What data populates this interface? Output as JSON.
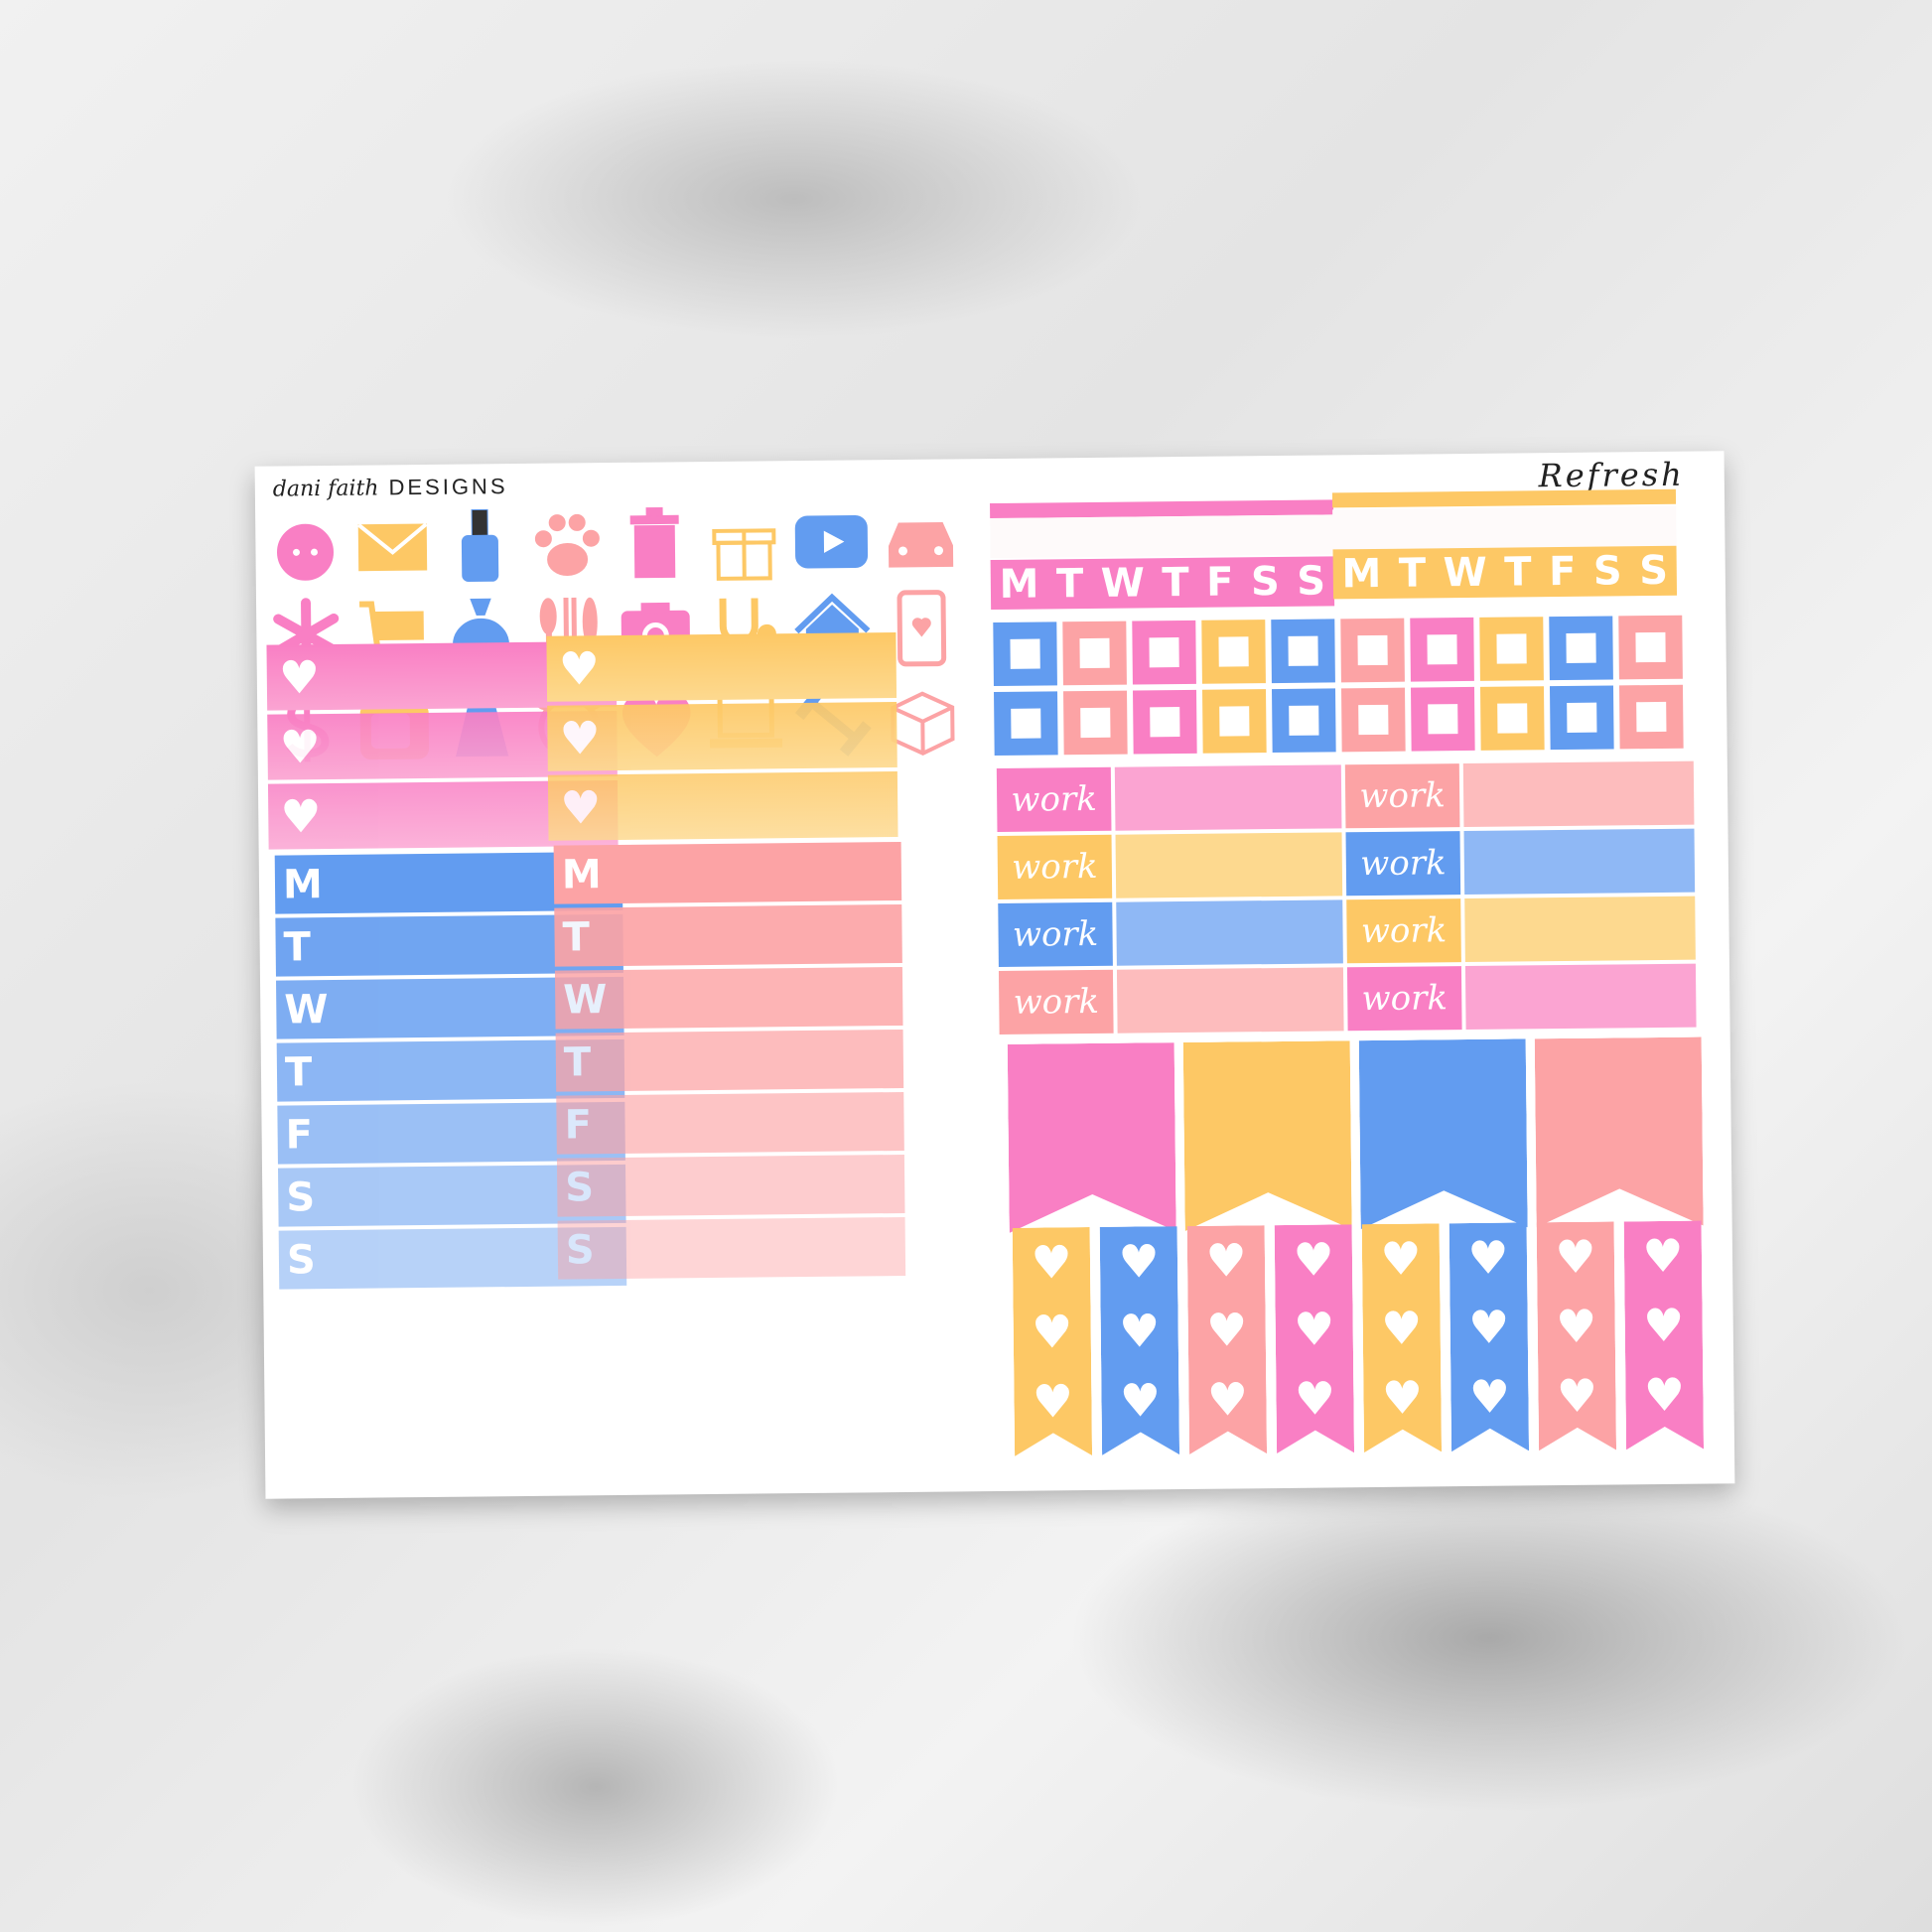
{
  "brand": {
    "script": "dani faith",
    "word": "DESIGNS"
  },
  "title": "Refresh",
  "colors": {
    "pink": "#f97fc4",
    "yellow": "#fdc865",
    "blue": "#629cf0",
    "salmon": "#fca3a5",
    "light_pink": "#fba4d2",
    "light_yellow": "#fdd98f",
    "light_blue": "#8fb8f5",
    "light_salmon": "#fdbcbd"
  },
  "icons": [
    [
      "face-mask-icon",
      "pink"
    ],
    [
      "envelope-icon",
      "yellow"
    ],
    [
      "nail-polish-icon",
      "blue"
    ],
    [
      "paw-icon",
      "salmon"
    ],
    [
      "trash-icon",
      "pink"
    ],
    [
      "gift-icon",
      "yellow"
    ],
    [
      "play-video-icon",
      "blue"
    ],
    [
      "car-icon",
      "salmon"
    ],
    [
      "asterisk-icon",
      "pink"
    ],
    [
      "shopping-cart-icon",
      "yellow"
    ],
    [
      "money-bag-icon",
      "blue"
    ],
    [
      "utensils-icon",
      "salmon"
    ],
    [
      "camera-icon",
      "pink"
    ],
    [
      "stethoscope-icon",
      "yellow"
    ],
    [
      "house-icon",
      "blue"
    ],
    [
      "phone-icon",
      "salmon"
    ],
    [
      "dollar-icon",
      "pink"
    ],
    [
      "tv-icon",
      "yellow"
    ],
    [
      "spray-bottle-icon",
      "blue"
    ],
    [
      "alarm-clock-icon",
      "salmon"
    ],
    [
      "heart-icon",
      "pink"
    ],
    [
      "laptop-icon",
      "yellow"
    ],
    [
      "dumbbell-icon",
      "blue"
    ],
    [
      "box-icon",
      "salmon"
    ]
  ],
  "heart_checklists": [
    {
      "color": "pink",
      "rows": 3
    },
    {
      "color": "yellow",
      "rows": 3
    }
  ],
  "day_lists": [
    {
      "color": "blue",
      "days": [
        "M",
        "T",
        "W",
        "T",
        "F",
        "S",
        "S"
      ]
    },
    {
      "color": "salmon",
      "days": [
        "M",
        "T",
        "W",
        "T",
        "F",
        "S",
        "S"
      ]
    }
  ],
  "weekly_headers": [
    {
      "color": "pink",
      "days": [
        "M",
        "T",
        "W",
        "T",
        "F",
        "S",
        "S"
      ]
    },
    {
      "color": "yellow",
      "days": [
        "M",
        "T",
        "W",
        "T",
        "F",
        "S",
        "S"
      ]
    }
  ],
  "checkboxes": [
    [
      "blue",
      "salmon",
      "pink",
      "yellow",
      "blue",
      "salmon",
      "pink",
      "yellow",
      "blue",
      "salmon"
    ],
    [
      "blue",
      "salmon",
      "pink",
      "yellow",
      "blue",
      "salmon",
      "pink",
      "yellow",
      "blue",
      "salmon"
    ]
  ],
  "work_label": "work",
  "work_rows": [
    [
      "pink",
      "salmon"
    ],
    [
      "yellow",
      "blue"
    ],
    [
      "blue",
      "yellow"
    ],
    [
      "salmon",
      "pink"
    ]
  ],
  "flags": [
    "pink",
    "yellow",
    "blue",
    "salmon"
  ],
  "heart_flags": [
    "yellow",
    "blue",
    "salmon",
    "pink",
    "yellow",
    "blue",
    "salmon",
    "pink"
  ]
}
